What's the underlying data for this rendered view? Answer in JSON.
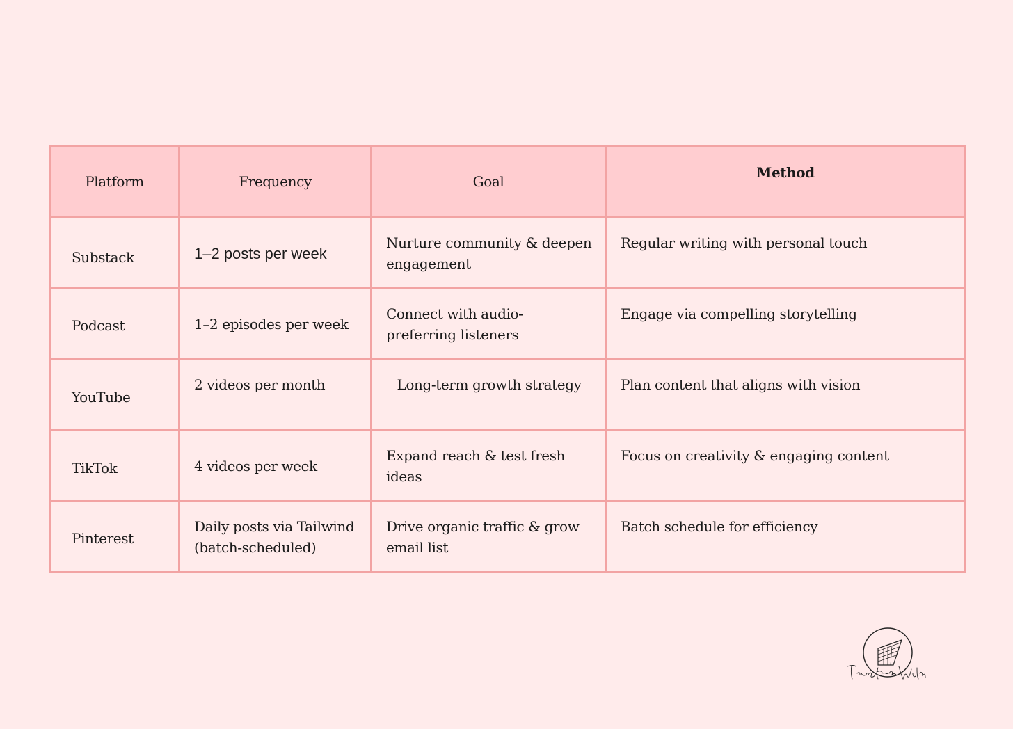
{
  "table": {
    "headers": {
      "platform": "Platform",
      "frequency": "Frequency",
      "goal": "Goal",
      "method": "Method"
    },
    "rows": [
      {
        "platform": "Substack",
        "frequency": "1–2 posts per week",
        "goal": "Nurture community & deepen engagement",
        "method": "Regular writing with personal touch"
      },
      {
        "platform": "Podcast",
        "frequency": "1–2 episodes per week",
        "goal": "Connect with audio-preferring listeners",
        "method": "Engage via compelling storytelling"
      },
      {
        "platform": "YouTube",
        "frequency": "2 videos per month",
        "goal": "Long-term growth strategy",
        "method": "Plan content that aligns with vision"
      },
      {
        "platform": "TikTok",
        "frequency": "4 videos per week",
        "goal": "Expand reach & test fresh ideas",
        "method": "Focus on creativity & engaging content"
      },
      {
        "platform": "Pinterest",
        "frequency": "Daily posts via Tailwind (batch-scheduled)",
        "goal": "Drive organic traffic & grow email list",
        "method": "Batch schedule for efficiency"
      }
    ]
  },
  "colors": {
    "background": "#ffebeb",
    "header_fill": "#ffcdd0",
    "border": "#f2a3a3"
  },
  "logo": {
    "icon": "true-from-within-logo-icon",
    "text": "True from Within"
  }
}
